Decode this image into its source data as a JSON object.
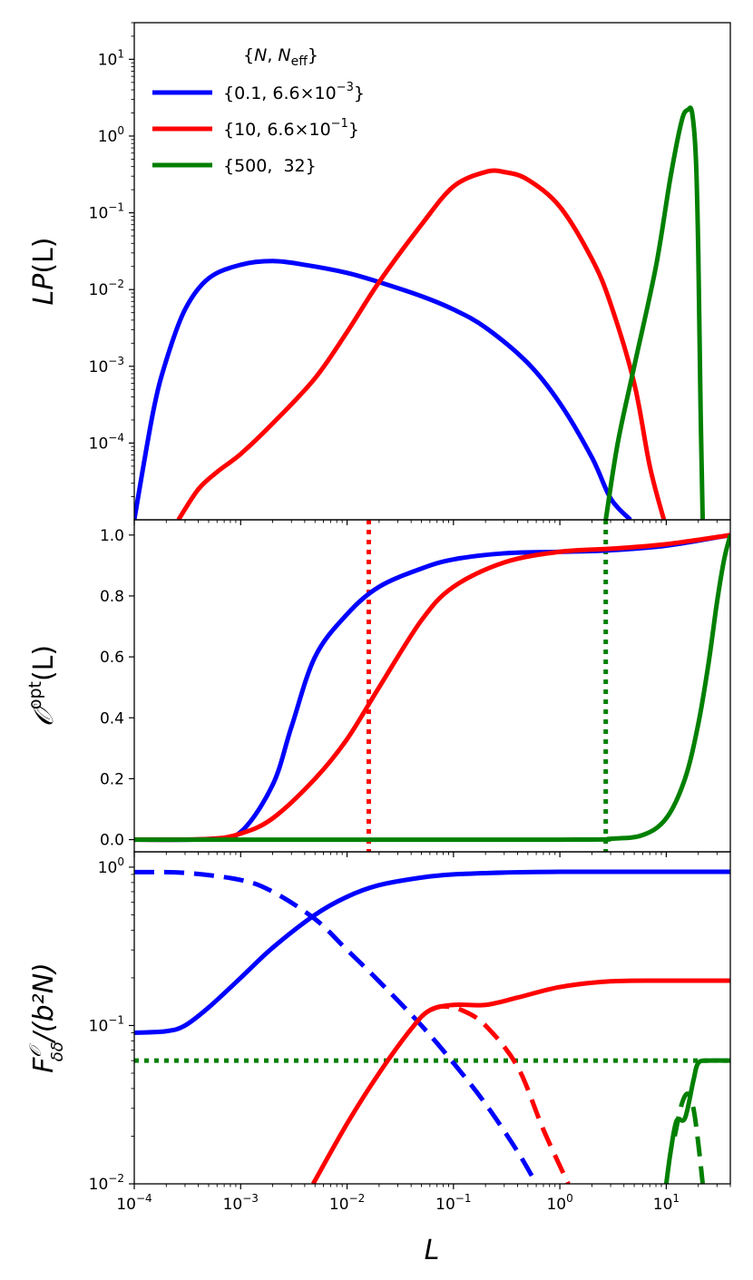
{
  "chart_data": [
    {
      "type": "line",
      "name": "top-panel",
      "ylabel_main": "LP",
      "ylabel_arg": "(L)",
      "xscale": "log",
      "yscale": "log",
      "xlim": [
        0.0001,
        40
      ],
      "ylim": [
        1e-05,
        30
      ],
      "yticks": [
        {
          "v": 0.0001,
          "base": "10",
          "exp": "−4"
        },
        {
          "v": 0.001,
          "base": "10",
          "exp": "−3"
        },
        {
          "v": 0.01,
          "base": "10",
          "exp": "−2"
        },
        {
          "v": 0.1,
          "base": "10",
          "exp": "−1"
        },
        {
          "v": 1,
          "base": "10",
          "exp": "0"
        },
        {
          "v": 10,
          "base": "10",
          "exp": "1"
        }
      ],
      "legend": {
        "placement": "top-left",
        "title_open": "{",
        "title_n": "N",
        "title_sep": ", ",
        "title_neff": "N",
        "title_neff_sub": "eff",
        "title_close": "}",
        "entries": [
          {
            "color": "#0000ff",
            "prefix": "{0.1, 6.6×10",
            "exp": "−3",
            "suffix": "}"
          },
          {
            "color": "#ff0000",
            "prefix": "{10, 6.6×10",
            "exp": "−1",
            "suffix": "}"
          },
          {
            "color": "#008000",
            "prefix": "{500,  32}",
            "exp": "",
            "suffix": ""
          }
        ]
      },
      "series": [
        {
          "name": "N=0.1",
          "color": "#0000ff",
          "style": "solid",
          "points": [
            [
              0.0001,
              1e-05
            ],
            [
              0.00015,
              0.00025
            ],
            [
              0.0002,
              0.0012
            ],
            [
              0.0003,
              0.0055
            ],
            [
              0.0005,
              0.014
            ],
            [
              0.001,
              0.021
            ],
            [
              0.002,
              0.0235
            ],
            [
              0.004,
              0.021
            ],
            [
              0.01,
              0.0165
            ],
            [
              0.02,
              0.0125
            ],
            [
              0.05,
              0.0082
            ],
            [
              0.1,
              0.0055
            ],
            [
              0.2,
              0.0032
            ],
            [
              0.5,
              0.0011
            ],
            [
              1,
              0.00033
            ],
            [
              2,
              6.5e-05
            ],
            [
              3,
              1.9e-05
            ],
            [
              4.6,
              1e-05
            ]
          ]
        },
        {
          "name": "N=10",
          "color": "#ff0000",
          "style": "solid",
          "points": [
            [
              0.00026,
              1e-05
            ],
            [
              0.0004,
              2.5e-05
            ],
            [
              0.0006,
              4.2e-05
            ],
            [
              0.001,
              7.2e-05
            ],
            [
              0.002,
              0.00018
            ],
            [
              0.005,
              0.0007
            ],
            [
              0.01,
              0.0028
            ],
            [
              0.02,
              0.0125
            ],
            [
              0.05,
              0.07
            ],
            [
              0.1,
              0.22
            ],
            [
              0.2,
              0.34
            ],
            [
              0.3,
              0.34
            ],
            [
              0.5,
              0.27
            ],
            [
              1,
              0.12
            ],
            [
              2,
              0.025
            ],
            [
              3,
              0.0065
            ],
            [
              5,
              0.0006
            ],
            [
              7,
              5e-05
            ],
            [
              9.5,
              1e-05
            ]
          ]
        },
        {
          "name": "N=500",
          "color": "#008000",
          "style": "solid",
          "points": [
            [
              2.7,
              1e-05
            ],
            [
              3.5,
              0.0001
            ],
            [
              5,
              0.001
            ],
            [
              8,
              0.02
            ],
            [
              11,
              0.3
            ],
            [
              14,
              1.6
            ],
            [
              16,
              2.2
            ],
            [
              17.5,
              2.0
            ],
            [
              19,
              0.5
            ],
            [
              20,
              0.03
            ],
            [
              21,
              0.0003
            ],
            [
              22,
              1e-05
            ]
          ]
        }
      ]
    },
    {
      "type": "line",
      "name": "middle-panel",
      "ylabel_main": "𝒪",
      "ylabel_sup": "opt",
      "ylabel_arg": "(L)",
      "xscale": "log",
      "yscale": "linear",
      "xlim": [
        0.0001,
        40
      ],
      "ylim": [
        -0.04,
        1.05
      ],
      "yticks": [
        {
          "v": 0.0,
          "label": "0.0"
        },
        {
          "v": 0.2,
          "label": "0.2"
        },
        {
          "v": 0.4,
          "label": "0.4"
        },
        {
          "v": 0.6,
          "label": "0.6"
        },
        {
          "v": 0.8,
          "label": "0.8"
        },
        {
          "v": 1.0,
          "label": "1.0"
        }
      ],
      "vlines": [
        {
          "x": 0.016,
          "color": "#ff0000",
          "style": "dotted"
        },
        {
          "x": 2.7,
          "color": "#008000",
          "style": "dotted"
        }
      ],
      "series": [
        {
          "name": "N=0.1",
          "color": "#0000ff",
          "style": "solid",
          "points": [
            [
              0.0001,
              0
            ],
            [
              0.0005,
              0.002
            ],
            [
              0.001,
              0.025
            ],
            [
              0.002,
              0.18
            ],
            [
              0.003,
              0.37
            ],
            [
              0.005,
              0.6
            ],
            [
              0.01,
              0.74
            ],
            [
              0.02,
              0.83
            ],
            [
              0.05,
              0.89
            ],
            [
              0.1,
              0.92
            ],
            [
              0.3,
              0.94
            ],
            [
              1,
              0.945
            ],
            [
              3,
              0.95
            ],
            [
              10,
              0.965
            ],
            [
              40,
              1.0
            ]
          ]
        },
        {
          "name": "N=10",
          "color": "#ff0000",
          "style": "solid",
          "points": [
            [
              0.0001,
              0
            ],
            [
              0.0005,
              0.002
            ],
            [
              0.001,
              0.02
            ],
            [
              0.002,
              0.07
            ],
            [
              0.005,
              0.2
            ],
            [
              0.01,
              0.33
            ],
            [
              0.02,
              0.5
            ],
            [
              0.05,
              0.72
            ],
            [
              0.1,
              0.83
            ],
            [
              0.3,
              0.91
            ],
            [
              1,
              0.945
            ],
            [
              3,
              0.955
            ],
            [
              10,
              0.97
            ],
            [
              40,
              1.0
            ]
          ]
        },
        {
          "name": "N=500",
          "color": "#008000",
          "style": "solid",
          "points": [
            [
              0.0001,
              0
            ],
            [
              1,
              0
            ],
            [
              3,
              0.003
            ],
            [
              6,
              0.015
            ],
            [
              10,
              0.07
            ],
            [
              15,
              0.2
            ],
            [
              20,
              0.38
            ],
            [
              25,
              0.58
            ],
            [
              30,
              0.78
            ],
            [
              35,
              0.92
            ],
            [
              40,
              1.0
            ]
          ]
        }
      ]
    },
    {
      "type": "line",
      "name": "bottom-panel",
      "ylabel_main": "F",
      "ylabel_sup": "𝒪",
      "ylabel_sub": "δδ",
      "ylabel_rest": "/(b²N)",
      "xlabel": "L",
      "xscale": "log",
      "yscale": "log",
      "xlim": [
        0.0001,
        40
      ],
      "ylim": [
        0.01,
        1.25
      ],
      "yticks": [
        {
          "v": 0.01,
          "base": "10",
          "exp": "−2"
        },
        {
          "v": 0.1,
          "base": "10",
          "exp": "−1"
        },
        {
          "v": 1,
          "base": "10",
          "exp": "0"
        }
      ],
      "xticks": [
        {
          "v": 0.0001,
          "base": "10",
          "exp": "−4"
        },
        {
          "v": 0.001,
          "base": "10",
          "exp": "−3"
        },
        {
          "v": 0.01,
          "base": "10",
          "exp": "−2"
        },
        {
          "v": 0.1,
          "base": "10",
          "exp": "−1"
        },
        {
          "v": 1,
          "base": "10",
          "exp": "0"
        },
        {
          "v": 10,
          "base": "10",
          "exp": "1"
        }
      ],
      "hlines": [
        {
          "y": 0.06,
          "color": "#008000",
          "style": "dotted"
        }
      ],
      "series": [
        {
          "name": "N=0.1 total",
          "color": "#0000ff",
          "style": "solid",
          "points": [
            [
              0.0001,
              0.09
            ],
            [
              0.0002,
              0.092
            ],
            [
              0.0003,
              0.1
            ],
            [
              0.0005,
              0.13
            ],
            [
              0.001,
              0.2
            ],
            [
              0.002,
              0.31
            ],
            [
              0.005,
              0.5
            ],
            [
              0.01,
              0.65
            ],
            [
              0.02,
              0.77
            ],
            [
              0.05,
              0.86
            ],
            [
              0.1,
              0.9
            ],
            [
              0.3,
              0.925
            ],
            [
              1,
              0.935
            ],
            [
              3,
              0.935
            ],
            [
              10,
              0.935
            ],
            [
              40,
              0.935
            ]
          ]
        },
        {
          "name": "N=0.1 dashed",
          "color": "#0000ff",
          "style": "dashed",
          "points": [
            [
              0.0001,
              0.93
            ],
            [
              0.0003,
              0.92
            ],
            [
              0.001,
              0.83
            ],
            [
              0.002,
              0.7
            ],
            [
              0.005,
              0.47
            ],
            [
              0.01,
              0.3
            ],
            [
              0.02,
              0.19
            ],
            [
              0.05,
              0.1
            ],
            [
              0.1,
              0.058
            ],
            [
              0.2,
              0.032
            ],
            [
              0.4,
              0.016
            ],
            [
              0.6,
              0.01
            ]
          ]
        },
        {
          "name": "N=10 total",
          "color": "#ff0000",
          "style": "solid",
          "points": [
            [
              0.0048,
              0.01
            ],
            [
              0.01,
              0.024
            ],
            [
              0.02,
              0.05
            ],
            [
              0.04,
              0.095
            ],
            [
              0.06,
              0.125
            ],
            [
              0.1,
              0.135
            ],
            [
              0.2,
              0.135
            ],
            [
              0.4,
              0.15
            ],
            [
              1,
              0.175
            ],
            [
              3,
              0.19
            ],
            [
              10,
              0.192
            ],
            [
              40,
              0.192
            ]
          ]
        },
        {
          "name": "N=10 dashed",
          "color": "#ff0000",
          "style": "dashed",
          "points": [
            [
              0.06,
              0.125
            ],
            [
              0.08,
              0.132
            ],
            [
              0.12,
              0.125
            ],
            [
              0.2,
              0.1
            ],
            [
              0.4,
              0.055
            ],
            [
              0.7,
              0.022
            ],
            [
              1.2,
              0.01
            ]
          ]
        },
        {
          "name": "N=500 total",
          "color": "#008000",
          "style": "solid",
          "points": [
            [
              10,
              0.01
            ],
            [
              11,
              0.016
            ],
            [
              12.5,
              0.025
            ],
            [
              15,
              0.026
            ],
            [
              18,
              0.045
            ],
            [
              20,
              0.058
            ],
            [
              25,
              0.06
            ],
            [
              40,
              0.06
            ]
          ]
        },
        {
          "name": "N=500 dashed",
          "color": "#008000",
          "style": "dashed",
          "points": [
            [
              12,
              0.02
            ],
            [
              14,
              0.032
            ],
            [
              16,
              0.037
            ],
            [
              18,
              0.03
            ],
            [
              20,
              0.018
            ],
            [
              22,
              0.01
            ]
          ]
        }
      ]
    }
  ]
}
